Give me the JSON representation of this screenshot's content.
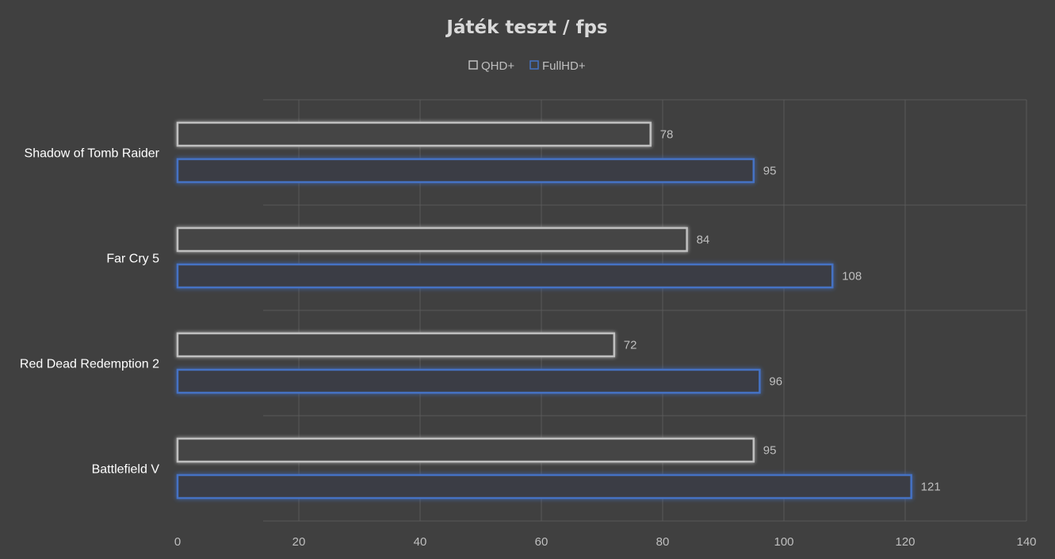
{
  "chart_data": {
    "type": "bar",
    "orientation": "horizontal",
    "title": "Játék teszt / fps",
    "categories": [
      "Shadow of Tomb Raider",
      "Far Cry 5",
      "Red Dead Redemption 2",
      "Battlefield V"
    ],
    "series": [
      {
        "name": "QHD+",
        "values": [
          78,
          84,
          72,
          95
        ],
        "color": "#bfbfbf"
      },
      {
        "name": "FullHD+",
        "values": [
          95,
          108,
          96,
          121
        ],
        "color": "#4472c4"
      }
    ],
    "xlim": [
      0,
      140
    ],
    "xticks": [
      0,
      20,
      40,
      60,
      80,
      100,
      120,
      140
    ],
    "grid": true,
    "legend_position": "top",
    "data_labels": true
  }
}
